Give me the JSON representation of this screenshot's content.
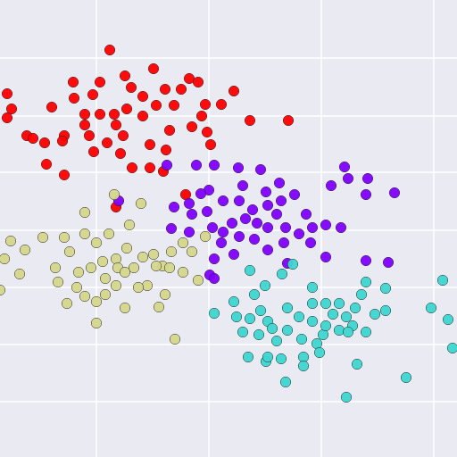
{
  "chart_data": {
    "type": "scatter",
    "xlim": [
      0,
      512
    ],
    "ylim": [
      0,
      512
    ],
    "xticks": [
      108,
      234,
      360,
      486
    ],
    "yticks": [
      62,
      126,
      190,
      254,
      319,
      382,
      447
    ],
    "grid": true,
    "background": "#eaeaf2",
    "grid_color": "#ffffff",
    "edge_color": "#222222",
    "series": [
      {
        "color": "#ff0000",
        "x": [
          123,
          82,
          112,
          140,
          172,
          212,
          8,
          13,
          8,
          58,
          83,
          104,
          147,
          160,
          185,
          203,
          222,
          262,
          248,
          230,
          195,
          175,
          160,
          142,
          128,
          112,
          95,
          95,
          100,
          130,
          138,
          120,
          105,
          72,
          50,
          30,
          52,
          72,
          148,
          168,
          183,
          168,
          190,
          215,
          232,
          236,
          226,
          280,
          323,
          208,
          130,
          70,
          37,
          135,
          186
        ],
        "values": [
          456,
          420,
          420,
          427,
          435,
          424,
          407,
          390,
          380,
          392,
          402,
          406,
          414,
          404,
          412,
          412,
          420,
          410,
          395,
          395,
          394,
          394,
          382,
          390,
          384,
          384,
          384,
          372,
          360,
          372,
          360,
          352,
          342,
          360,
          352,
          360,
          328,
          316,
          324,
          324,
          320,
          350,
          366,
          370,
          364,
          350,
          382,
          377,
          377,
          294,
          280,
          354,
          357,
          340,
          344
        ]
      },
      {
        "color": "#8000ff",
        "x": [
          187,
          220,
          240,
          267,
          292,
          386,
          412,
          390,
          371,
          410,
          442,
          313,
          298,
          272,
          234,
          225,
          212,
          195,
          192,
          215,
          232,
          250,
          268,
          283,
          300,
          315,
          330,
          343,
          320,
          310,
          288,
          275,
          260,
          250,
          238,
          248,
          268,
          285,
          300,
          318,
          335,
          350,
          365,
          382,
          348,
          365,
          322,
          300,
          262,
          240,
          235,
          240,
          212,
          410,
          435,
          133
        ],
        "values": [
          327,
          327,
          327,
          324,
          322,
          325,
          312,
          312,
          304,
          294,
          296,
          307,
          297,
          304,
          299,
          295,
          284,
          280,
          256,
          272,
          275,
          287,
          287,
          277,
          282,
          287,
          294,
          272,
          257,
          272,
          262,
          267,
          262,
          252,
          257,
          240,
          247,
          244,
          257,
          240,
          250,
          257,
          260,
          257,
          240,
          224,
          217,
          232,
          227,
          222,
          204,
          200,
          252,
          220,
          218,
          287
        ]
      },
      {
        "color": "#d5d68b",
        "x": [
          128,
          158,
          95,
          12,
          28,
          48,
          72,
          95,
          122,
          145,
          108,
          78,
          62,
          22,
          0,
          5,
          65,
          88,
          102,
          115,
          130,
          142,
          150,
          160,
          172,
          182,
          192,
          205,
          230,
          215,
          205,
          222,
          190,
          165,
          155,
          185,
          178,
          140,
          118,
          108,
          95,
          75,
          108,
          130,
          118,
          196,
          86,
          175,
          132,
          140
        ],
        "values": [
          294,
          284,
          274,
          242,
          232,
          246,
          246,
          250,
          250,
          260,
          240,
          230,
          212,
          205,
          187,
          222,
          196,
          207,
          212,
          219,
          222,
          234,
          212,
          224,
          227,
          214,
          230,
          240,
          247,
          230,
          207,
          198,
          212,
          192,
          190,
          182,
          168,
          167,
          182,
          174,
          180,
          172,
          150,
          192,
          200,
          132,
          190,
          214,
          212,
          207
        ]
      },
      {
        "color": "#3dd6d0",
        "x": [
          280,
          316,
          328,
          285,
          297,
          262,
          240,
          265,
          292,
          280,
          300,
          272,
          290,
          305,
          322,
          338,
          310,
          322,
          335,
          350,
          350,
          365,
          380,
          373,
          388,
          398,
          405,
          410,
          432,
          432,
          420,
          395,
          380,
          362,
          355,
          358,
          340,
          315,
          298,
          278,
          320,
          340,
          400,
          410,
          390,
          388,
          455,
          483,
          496,
          502,
          507,
          350,
          365,
          300
        ],
        "values": [
          209,
          205,
          216,
          182,
          192,
          174,
          161,
          157,
          164,
          155,
          152,
          140,
          137,
          144,
          142,
          132,
          130,
          167,
          157,
          172,
          190,
          172,
          172,
          160,
          157,
          167,
          182,
          196,
          189,
          164,
          160,
          147,
          142,
          137,
          127,
          117,
          112,
          110,
          107,
          112,
          84,
          102,
          104,
          140,
          140,
          67,
          89,
          167,
          198,
          154,
          122,
          152,
          147,
          112
        ]
      }
    ]
  }
}
